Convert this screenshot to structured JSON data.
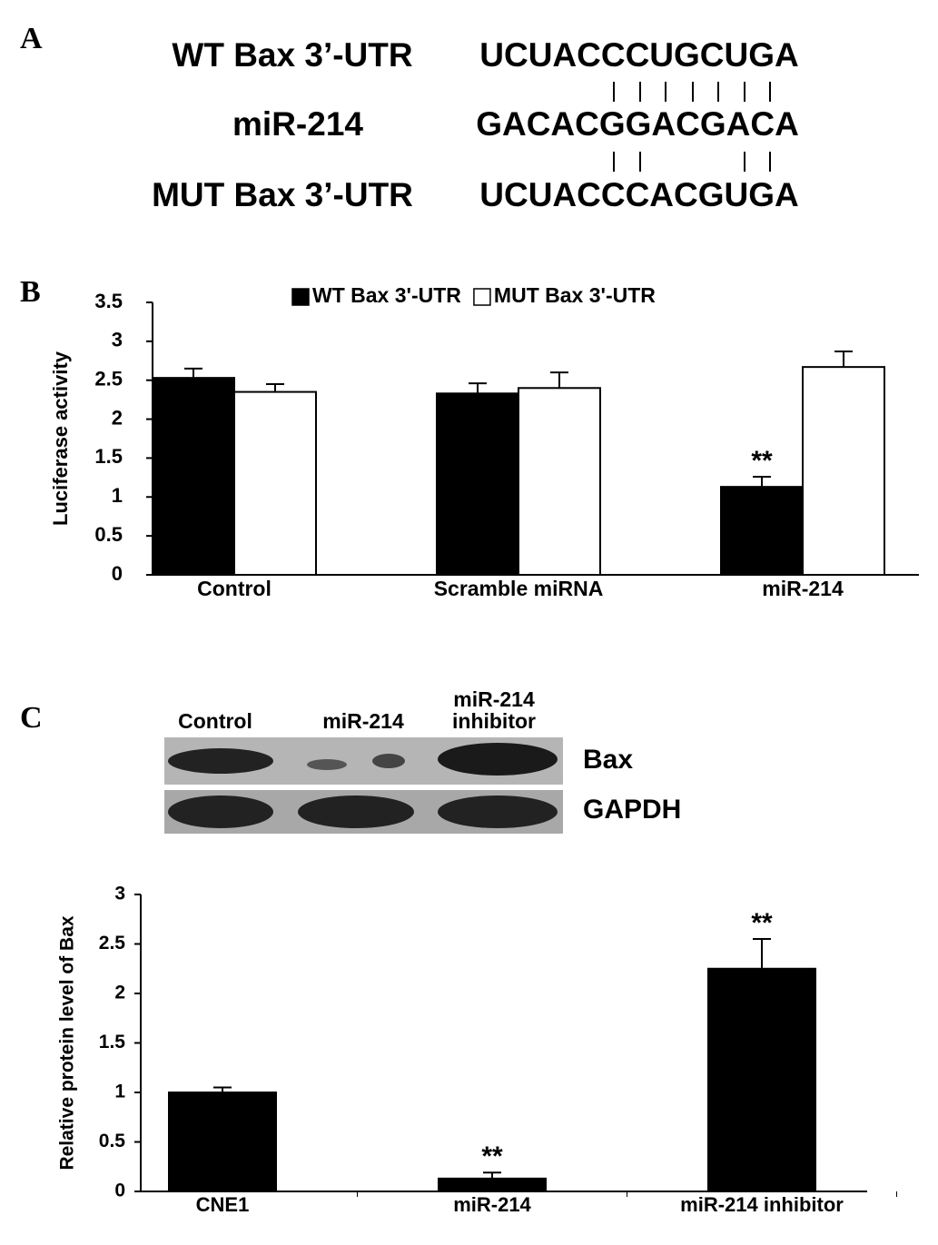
{
  "panel_labels": [
    "A",
    "B",
    "C"
  ],
  "alignment": {
    "rows": [
      {
        "name": "WT Bax 3’-UTR",
        "sequence": "UCUACCCUGCUGA"
      },
      {
        "name": "miR-214",
        "sequence": "GACACGGACGACA"
      },
      {
        "name": "MUT Bax 3’-UTR",
        "sequence": "UCUACCCACGUGA"
      }
    ]
  },
  "blot": {
    "lanes": [
      "Control",
      "miR-214",
      "miR-214 inhibitor"
    ],
    "rows": [
      "Bax",
      "GAPDH"
    ]
  },
  "chart_data": [
    {
      "type": "bar",
      "ylabel": "Luciferase activity",
      "categories": [
        "Control",
        "Scramble miRNA",
        "miR-214"
      ],
      "series": [
        {
          "name": "WT Bax 3'-UTR",
          "color": "#000000",
          "values": [
            2.53,
            2.33,
            1.13
          ],
          "errors": [
            0.12,
            0.13,
            0.13
          ]
        },
        {
          "name": "MUT Bax 3'-UTR",
          "color": "#ffffff",
          "values": [
            2.35,
            2.4,
            2.67
          ],
          "errors": [
            0.1,
            0.2,
            0.2
          ]
        }
      ],
      "ylim": [
        0,
        3.5
      ],
      "yticks": [
        0,
        0.5,
        1,
        1.5,
        2,
        2.5,
        3,
        3.5
      ],
      "legend": "top",
      "annotations": [
        {
          "text": "**",
          "category": "miR-214",
          "series": "WT Bax 3'-UTR"
        }
      ]
    },
    {
      "type": "bar",
      "ylabel": "Relative protein level of Bax",
      "categories": [
        "CNE1",
        "miR-214",
        "miR-214 inhibitor"
      ],
      "series": [
        {
          "color": "#000000",
          "values": [
            1.0,
            0.13,
            2.25
          ],
          "errors": [
            0.05,
            0.06,
            0.3
          ]
        }
      ],
      "ylim": [
        0,
        3
      ],
      "yticks": [
        0,
        0.5,
        1,
        1.5,
        2,
        2.5,
        3
      ],
      "annotations": [
        {
          "text": "**",
          "category": "miR-214"
        },
        {
          "text": "**",
          "category": "miR-214 inhibitor"
        }
      ]
    }
  ]
}
